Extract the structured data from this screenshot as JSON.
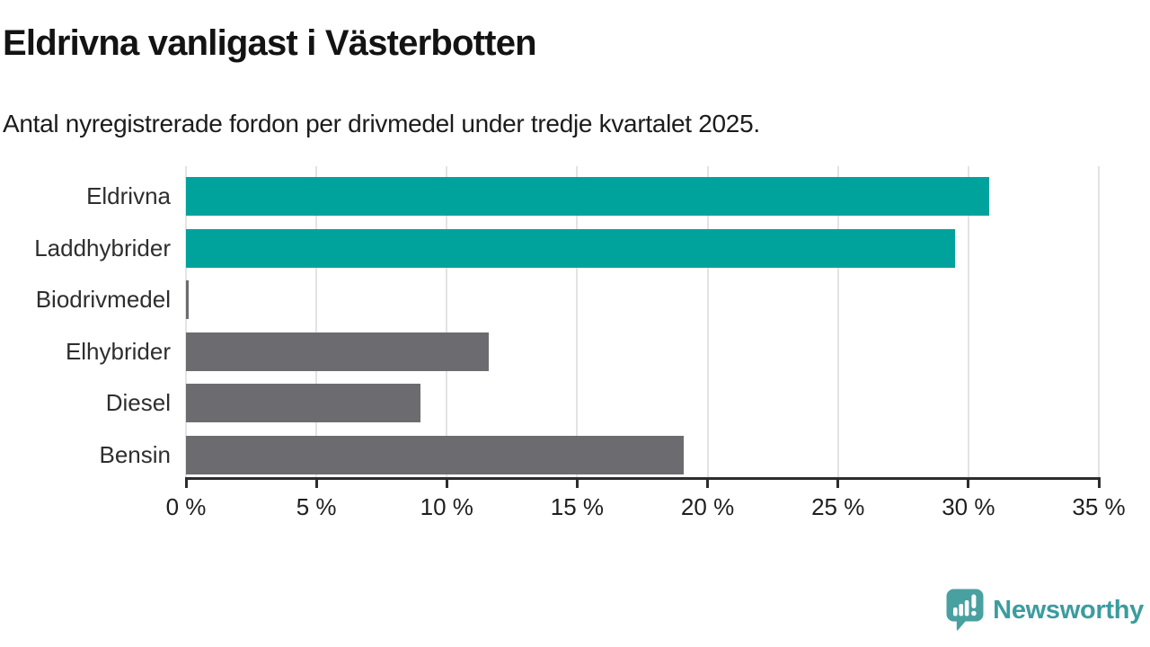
{
  "header": {
    "title": "Eldrivna vanligast i Västerbotten",
    "subtitle": "Antal nyregistrerade fordon per drivmedel under tredje kvartalet 2025."
  },
  "chart_data": {
    "type": "bar",
    "orientation": "horizontal",
    "title": "Eldrivna vanligast i Västerbotten",
    "subtitle": "Antal nyregistrerade fordon per drivmedel under tredje kvartalet 2025.",
    "categories": [
      "Eldrivna",
      "Laddhybrider",
      "Biodrivmedel",
      "Elhybrider",
      "Diesel",
      "Bensin"
    ],
    "values": [
      30.8,
      29.5,
      0.1,
      11.6,
      9.0,
      19.1
    ],
    "unit": "%",
    "bar_colors": [
      "#00a39c",
      "#00a39c",
      "#6c6c70",
      "#6c6c70",
      "#6c6c70",
      "#6c6c70"
    ],
    "xlim": [
      0,
      35
    ],
    "xticks": [
      0,
      5,
      10,
      15,
      20,
      25,
      30,
      35
    ],
    "xtick_labels": [
      "0 %",
      "5 %",
      "10 %",
      "15 %",
      "20 %",
      "25 %",
      "30 %",
      "35 %"
    ],
    "grid": true,
    "legend": false,
    "highlight_color": "#00a39c",
    "default_color": "#6c6c70"
  },
  "footer": {
    "brand": "Newsworthy",
    "logo_icon": "newsworthy-speech-bubble-bar-chart-icon"
  },
  "colors": {
    "brand_text": "#3b9c9d",
    "logo_fill": "#49a0a1",
    "axis": "#2d2d2d",
    "gridline": "#e3e3e3"
  }
}
